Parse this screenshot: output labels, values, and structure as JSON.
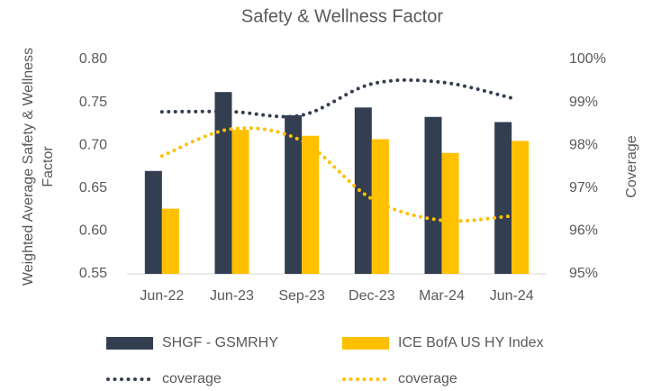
{
  "chart_data": {
    "type": "bar",
    "title": "Safety & Wellness Factor",
    "ylabel": [
      "Weighted Average  Safety & Wellness",
      "Factor"
    ],
    "y2label": "Coverage",
    "categories": [
      "Jun-22",
      "Jun-23",
      "Sep-23",
      "Dec-23",
      "Mar-24",
      "Jun-24"
    ],
    "series": [
      {
        "name": "SHGF - GSMRHY",
        "type": "bar",
        "color": "#333f50",
        "values": [
          0.67,
          0.762,
          0.735,
          0.744,
          0.733,
          0.727
        ]
      },
      {
        "name": "ICE BofA US HY Index",
        "type": "bar",
        "color": "#ffc000",
        "values": [
          0.626,
          0.718,
          0.711,
          0.707,
          0.691,
          0.705
        ]
      },
      {
        "name": "coverage",
        "type": "line",
        "axis": "y2",
        "color": "#333f50",
        "values": [
          98.78,
          98.78,
          98.7,
          99.43,
          99.47,
          99.1
        ]
      },
      {
        "name": "coverage",
        "type": "line",
        "axis": "y2",
        "color": "#ffc000",
        "values": [
          97.75,
          98.38,
          98.1,
          96.75,
          96.25,
          96.35
        ]
      }
    ],
    "ylim": [
      0.55,
      0.8
    ],
    "yticks": [
      0.55,
      {
        "value": 0.6,
        "label": "0.60"
      },
      0.65,
      {
        "value": 0.7,
        "label": "0.70"
      },
      0.75,
      {
        "value": 0.8,
        "label": "0.80"
      }
    ],
    "y2lim": [
      95,
      100
    ],
    "y2ticks": [
      {
        "value": 95,
        "label": "95%"
      },
      {
        "value": 96,
        "label": "96%"
      },
      {
        "value": 97,
        "label": "97%"
      },
      {
        "value": 98,
        "label": "98%"
      },
      {
        "value": 99,
        "label": "99%"
      },
      {
        "value": 100,
        "label": "100%"
      }
    ],
    "grid": false
  }
}
